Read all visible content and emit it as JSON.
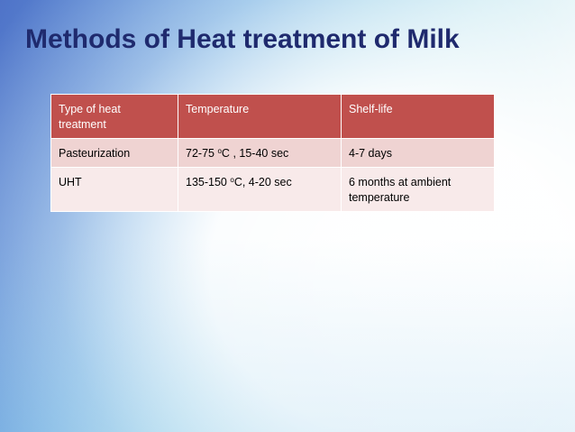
{
  "title": "Methods of Heat treatment of Milk",
  "table": {
    "headers": [
      "Type of heat treatment",
      "Temperature",
      "Shelf-life"
    ],
    "rows": [
      {
        "type": "Pasteurization",
        "temp_range": "72-75",
        "temp_unit": "C",
        "temp_time": ", 15-40 sec",
        "shelf_life": "4-7 days"
      },
      {
        "type": "UHT",
        "temp_range": "135-150",
        "temp_unit": "C",
        "temp_time": ", 4-20  sec",
        "shelf_life": "6 months at ambient temperature"
      }
    ],
    "degree_symbol": "o"
  },
  "colors": {
    "title": "#1f2a6e",
    "header_bg": "#c0504d",
    "row1_bg": "#efd3d2",
    "row2_bg": "#f8eaea"
  }
}
